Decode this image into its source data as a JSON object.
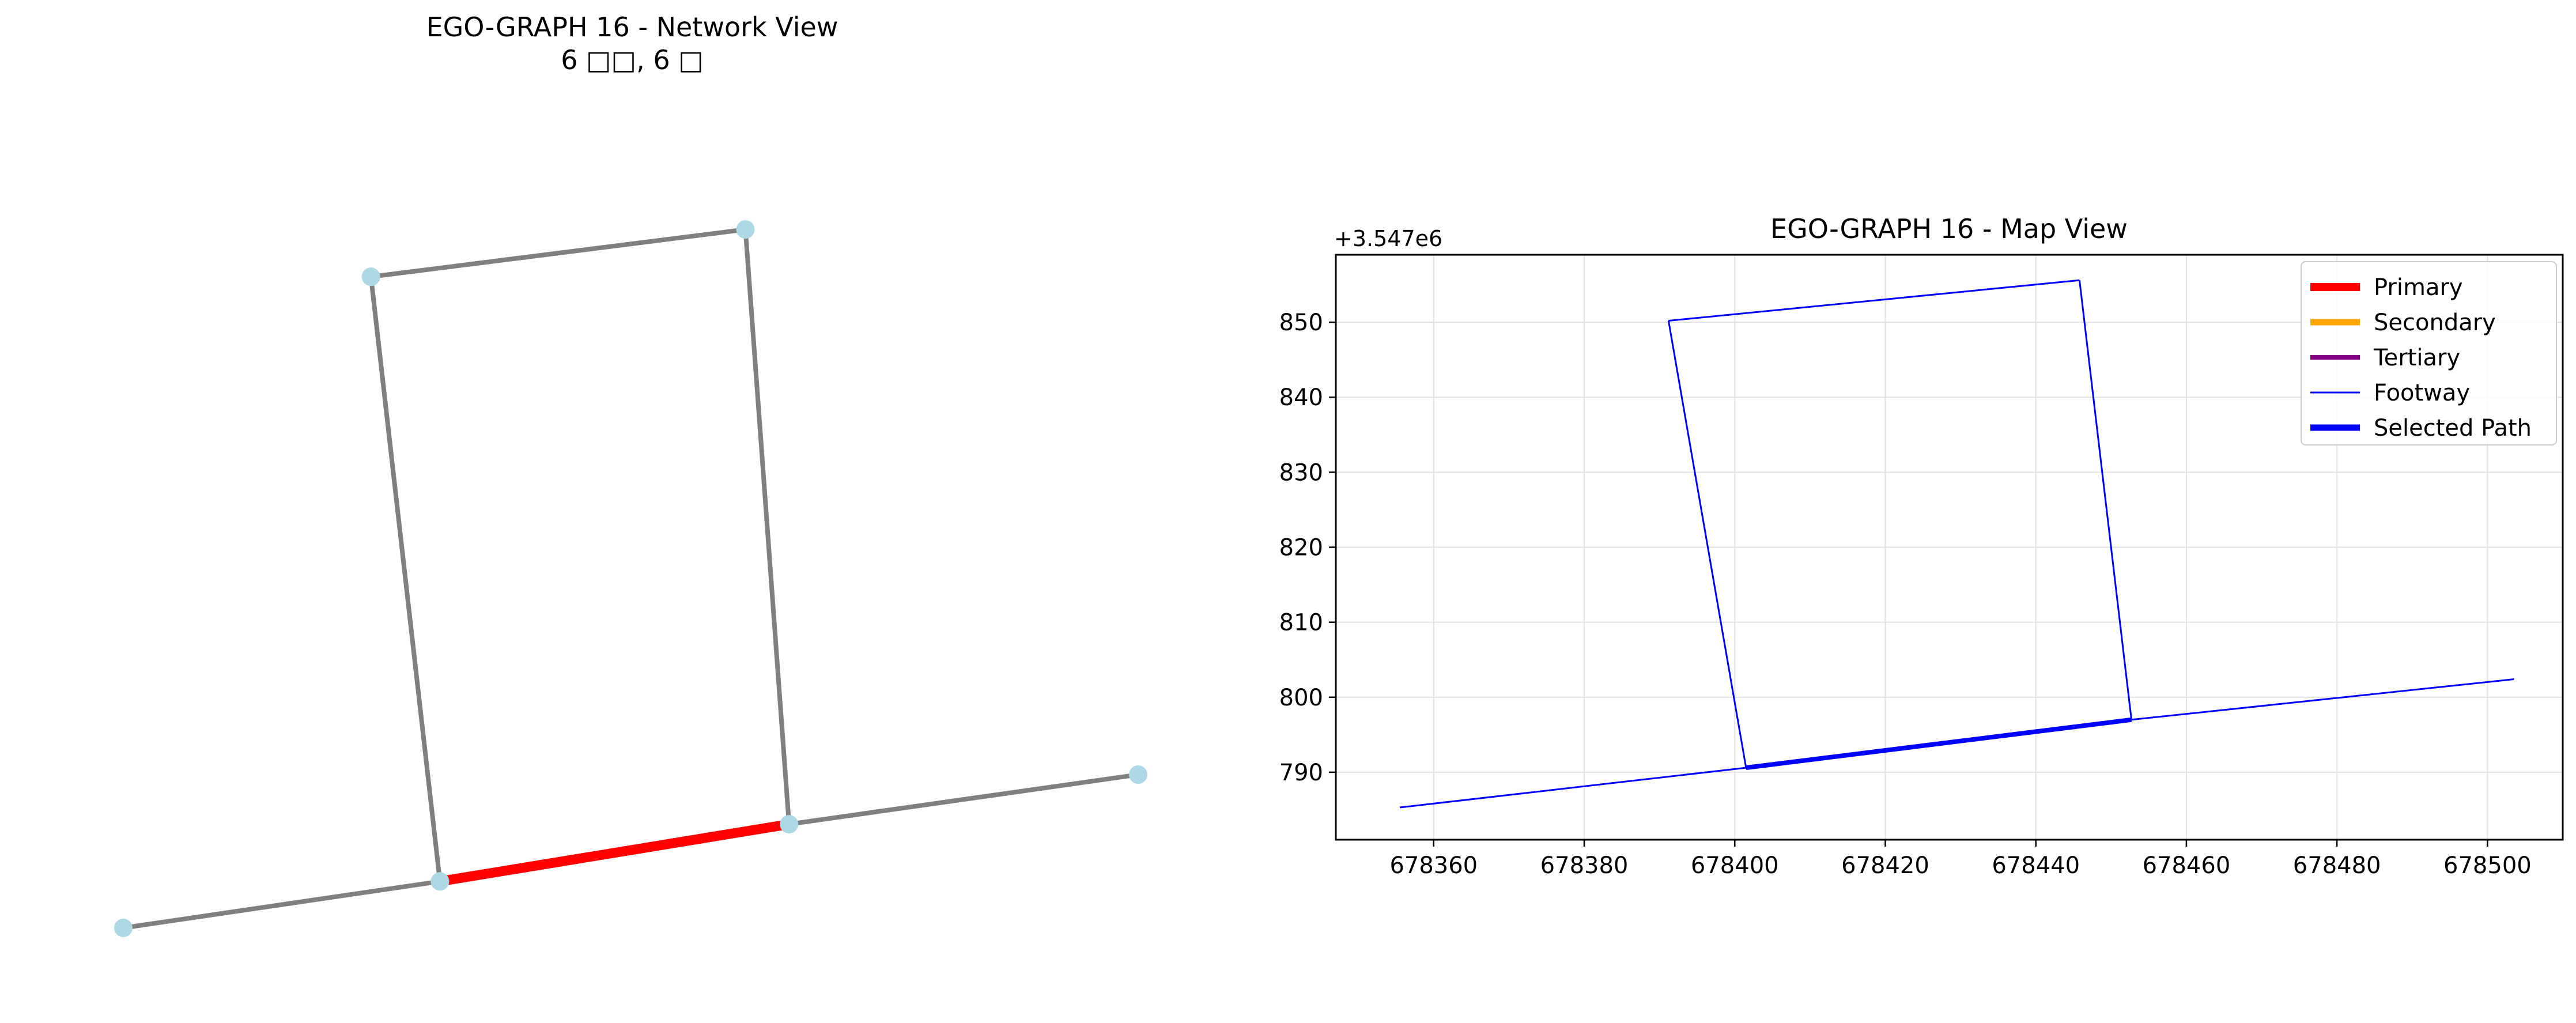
{
  "chart_data": [
    {
      "type": "network",
      "title": "EGO-GRAPH 16 - Network View",
      "subtitle": "6 □□, 6 □",
      "node_color": "#add8e6",
      "edge_color": "#808080",
      "highlight_color": "#ff0000",
      "nodes": [
        {
          "id": "n1",
          "x": 0.0,
          "y": 0.0
        },
        {
          "id": "n2",
          "x": 0.312,
          "y": 0.061
        },
        {
          "id": "n3",
          "x": 0.656,
          "y": 0.136
        },
        {
          "id": "n4",
          "x": 1.0,
          "y": 0.201
        },
        {
          "id": "n5",
          "x": 0.244,
          "y": 0.854
        },
        {
          "id": "n6",
          "x": 0.613,
          "y": 0.916
        }
      ],
      "edges": [
        {
          "from": "n1",
          "to": "n2",
          "highlight": false
        },
        {
          "from": "n2",
          "to": "n3",
          "highlight": true
        },
        {
          "from": "n3",
          "to": "n4",
          "highlight": false
        },
        {
          "from": "n2",
          "to": "n5",
          "highlight": false
        },
        {
          "from": "n5",
          "to": "n6",
          "highlight": false
        },
        {
          "from": "n6",
          "to": "n3",
          "highlight": false
        }
      ]
    },
    {
      "type": "line",
      "title": "EGO-GRAPH 16 - Map View",
      "offset_label": "+3.547e6",
      "xlabel": "",
      "ylabel": "",
      "xlim": [
        678347,
        678510
      ],
      "ylim": [
        781,
        859
      ],
      "xticks": [
        678360,
        678380,
        678400,
        678420,
        678440,
        678460,
        678480,
        678500
      ],
      "yticks": [
        790,
        800,
        810,
        820,
        830,
        840,
        850
      ],
      "grid": true,
      "legend_position": "top-right",
      "legend": [
        {
          "label": "Primary",
          "color": "#ff0000",
          "width": 4
        },
        {
          "label": "Secondary",
          "color": "#ffa500",
          "width": 3
        },
        {
          "label": "Tertiary",
          "color": "#800080",
          "width": 2
        },
        {
          "label": "Footway",
          "color": "#0000ff",
          "width": 1
        },
        {
          "label": "Selected Path",
          "color": "#0000ff",
          "width": 3
        }
      ],
      "series": [
        {
          "kind": "Footway",
          "color": "#0000ff",
          "points": [
            [
              678355.5,
              785.3
            ],
            [
              678401.5,
              790.6
            ]
          ]
        },
        {
          "kind": "Footway",
          "color": "#0000ff",
          "points": [
            [
              678401.5,
              790.6
            ],
            [
              678452.7,
              797.0
            ]
          ]
        },
        {
          "kind": "Footway",
          "color": "#0000ff",
          "points": [
            [
              678452.7,
              797.0
            ],
            [
              678503.5,
              802.4
            ]
          ]
        },
        {
          "kind": "Footway",
          "color": "#0000ff",
          "points": [
            [
              678401.5,
              790.6
            ],
            [
              678391.2,
              850.2
            ]
          ]
        },
        {
          "kind": "Footway",
          "color": "#0000ff",
          "points": [
            [
              678391.2,
              850.2
            ],
            [
              678445.8,
              855.6
            ]
          ]
        },
        {
          "kind": "Footway",
          "color": "#0000ff",
          "points": [
            [
              678445.8,
              855.6
            ],
            [
              678452.7,
              797.0
            ]
          ]
        },
        {
          "kind": "Selected Path",
          "color": "#0000ff",
          "points": [
            [
              678401.5,
              790.6
            ],
            [
              678452.7,
              797.0
            ]
          ]
        }
      ]
    }
  ]
}
